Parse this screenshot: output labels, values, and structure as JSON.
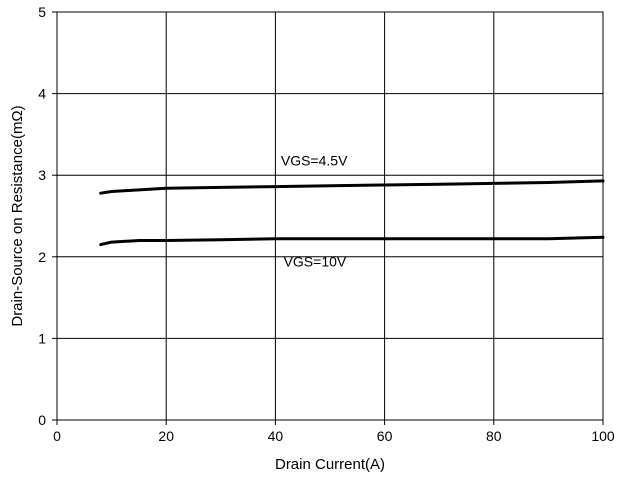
{
  "chart_data": {
    "type": "line",
    "title": "",
    "xlabel": "Drain Current(A)",
    "ylabel": "Drain-Source on Resistance(mΩ)",
    "xlim": [
      0,
      100
    ],
    "ylim": [
      0,
      5
    ],
    "x_ticks": [
      0,
      20,
      40,
      60,
      80,
      100
    ],
    "y_ticks": [
      0,
      1,
      2,
      3,
      4,
      5
    ],
    "grid": true,
    "legend": "none",
    "series": [
      {
        "name": "VGS=4.5V",
        "color": "#000000",
        "x": [
          8,
          10,
          15,
          20,
          30,
          40,
          50,
          60,
          70,
          80,
          90,
          100
        ],
        "y": [
          2.78,
          2.8,
          2.82,
          2.84,
          2.85,
          2.86,
          2.87,
          2.88,
          2.89,
          2.9,
          2.91,
          2.93
        ]
      },
      {
        "name": "VGS=10V",
        "color": "#000000",
        "x": [
          8,
          10,
          15,
          20,
          30,
          40,
          50,
          60,
          70,
          80,
          90,
          100
        ],
        "y": [
          2.15,
          2.18,
          2.2,
          2.2,
          2.21,
          2.22,
          2.22,
          2.22,
          2.22,
          2.22,
          2.22,
          2.24
        ]
      }
    ],
    "annotations": [
      {
        "text": "VGS=4.5V",
        "x": 41,
        "y": 3.12
      },
      {
        "text": "VGS=10V",
        "x": 41.5,
        "y": 1.88
      }
    ]
  }
}
